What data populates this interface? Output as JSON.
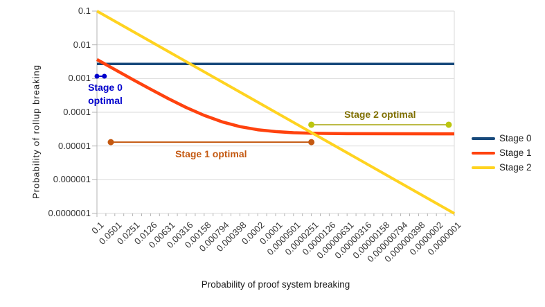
{
  "chart_data": {
    "type": "line",
    "title": "",
    "xlabel": "Probability of proof system breaking",
    "ylabel": "Probability of rollup breaking",
    "x_scale": "log",
    "y_scale": "log",
    "x_range": [
      0.1,
      1e-07
    ],
    "y_range": [
      1e-07,
      0.1
    ],
    "grid": "horizontal-decades",
    "legend_position": "right",
    "x_tick_labels": [
      "0.1",
      "0.0501",
      "0.0251",
      "0.0126",
      "0.00631",
      "0.00316",
      "0.00158",
      "0.000794",
      "0.000398",
      "0.0002",
      "0.0001",
      "0.0000501",
      "0.0000251",
      "0.0000126",
      "0.00000631",
      "0.00000316",
      "0.00000158",
      "0.000000794",
      "0.000000398",
      "0.0000002",
      "0.0000001"
    ],
    "y_tick_labels": [
      "0.1",
      "0.01",
      "0.001",
      "0.0001",
      "0.00001",
      "0.000001",
      "0.0000001"
    ],
    "series": [
      {
        "name": "Stage 0",
        "color": "#17497B",
        "width": 3.5,
        "points": [
          [
            0.1,
            0.0027
          ],
          [
            1e-07,
            0.0027
          ]
        ]
      },
      {
        "name": "Stage 1",
        "color": "#FF420E",
        "width": 4.5,
        "points": [
          [
            0.1,
            0.00367
          ],
          [
            0.0501,
            0.00185
          ],
          [
            0.0251,
            0.000939
          ],
          [
            0.0126,
            0.000483
          ],
          [
            0.00631,
            0.000253
          ],
          [
            0.00316,
            0.000138
          ],
          [
            0.00158,
            8.07e-05
          ],
          [
            0.000794,
            5.2e-05
          ],
          [
            0.000398,
            3.75e-05
          ],
          [
            0.0002,
            3.03e-05
          ],
          [
            0.0001,
            2.67e-05
          ],
          [
            5.01e-05,
            2.48e-05
          ],
          [
            2.51e-05,
            2.39e-05
          ],
          [
            1.26e-05,
            2.35e-05
          ],
          [
            6.31e-06,
            2.32e-05
          ],
          [
            1e-07,
            2.3e-05
          ]
        ]
      },
      {
        "name": "Stage 2",
        "color": "#FFD320",
        "width": 4,
        "points": [
          [
            0.1,
            0.1
          ],
          [
            1e-07,
            1e-07
          ]
        ]
      }
    ],
    "annotations": [
      {
        "id": "stage-0-optimal",
        "label": "Stage 0\noptimal",
        "x1": 0.1,
        "x2": 0.075,
        "y": 0.00117,
        "line_color": "#0000CC",
        "dot_color": "#0000CC",
        "text_color": "#0000CC",
        "dot_r": 3.5,
        "line_width": 2,
        "label_position": "below-start"
      },
      {
        "id": "stage-1-optimal",
        "label": "Stage 1 optimal",
        "x1": 0.0585,
        "x2": 2.51e-05,
        "y": 1.3e-05,
        "line_color": "#C45911",
        "dot_color": "#C45911",
        "text_color": "#C45911",
        "dot_r": 4.5,
        "line_width": 2,
        "label_position": "below-center"
      },
      {
        "id": "stage-2-optimal",
        "label": "Stage 2 optimal",
        "x1": 2.51e-05,
        "x2": 1.24e-07,
        "y": 4.27e-05,
        "line_color": "#A5A408",
        "dot_color": "#BCC60E",
        "text_color": "#7F6F00",
        "dot_r": 4.5,
        "line_width": 1.5,
        "label_position": "above-center"
      }
    ],
    "style": {
      "grid_color": "#D9D9D9",
      "axis_color": "#B3B3B3",
      "tick_label_color": "#333333"
    }
  }
}
